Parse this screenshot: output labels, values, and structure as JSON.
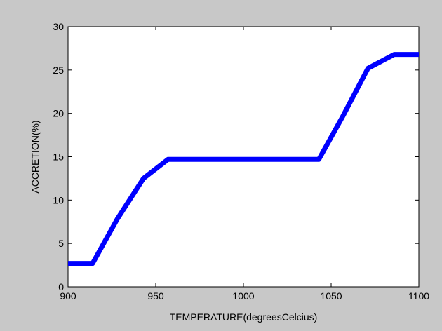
{
  "chart_data": {
    "type": "line",
    "xlabel": "TEMPERATURE(degreesCelcius)",
    "ylabel": "ACCRETION(%)",
    "xlim": [
      900,
      1100
    ],
    "ylim": [
      0,
      30
    ],
    "xticks": [
      900,
      950,
      1000,
      1050,
      1100
    ],
    "yticks": [
      0,
      5,
      10,
      15,
      20,
      25,
      30
    ],
    "xtick_labels": [
      "900",
      "950",
      "1000",
      "1050",
      "1100"
    ],
    "ytick_labels": [
      "0",
      "5",
      "10",
      "15",
      "20",
      "25",
      "30"
    ],
    "grid": false,
    "legend": "none",
    "series": [
      {
        "color": "#0000ff",
        "x": [
          900,
          914,
          928,
          943,
          957,
          1000,
          1043,
          1057,
          1071,
          1086,
          1100
        ],
        "y": [
          2.7,
          2.7,
          7.8,
          12.5,
          14.7,
          14.7,
          14.7,
          19.8,
          25.2,
          26.8,
          26.8
        ]
      }
    ]
  }
}
